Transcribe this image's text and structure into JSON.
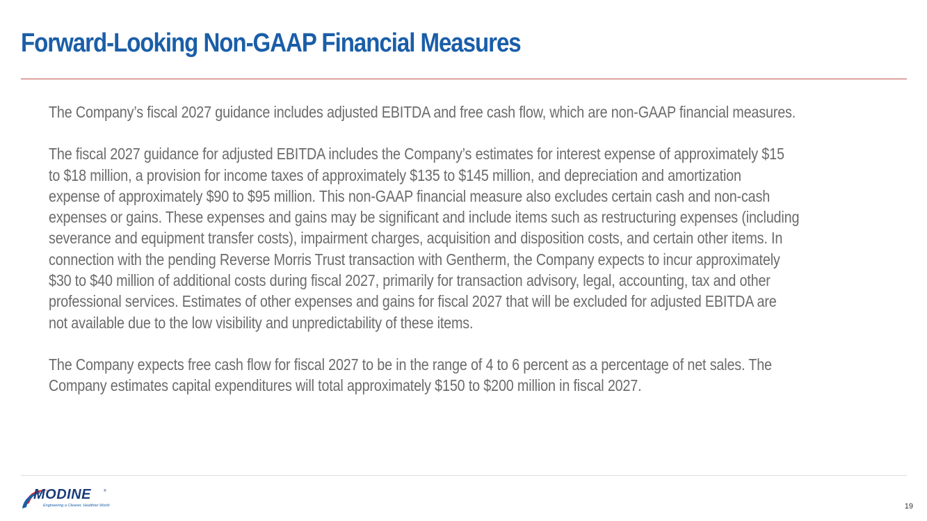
{
  "slide": {
    "title": "Forward-Looking Non-GAAP Financial Measures",
    "page_number": "19"
  },
  "body": {
    "paragraph1": "The Company’s fiscal 2027 guidance includes adjusted EBITDA and free cash flow, which are non-GAAP financial measures.",
    "paragraph2": [
      "The fiscal 2027 guidance for adjusted EBITDA includes the Company’s estimates for interest expense of approximately $15",
      "to $18 million, a provision for income taxes of approximately $135 to $145 million, and depreciation and amortization",
      "expense of approximately $90 to $95 million. This non-GAAP financial measure also excludes certain cash and non-cash",
      "expenses or gains. These expenses and gains may be significant and include items such as restructuring expenses (including",
      "severance and equipment transfer costs), impairment charges, acquisition and disposition costs, and certain other items.  In",
      "connection with the pending Reverse Morris Trust transaction with Gentherm, the Company expects to incur approximately",
      "$30 to $40 million of additional costs during fiscal 2027, primarily for transaction advisory, legal, accounting, tax and other",
      "professional services. Estimates of other expenses and gains for fiscal 2027 that will be excluded for adjusted EBITDA are",
      "not available due to the low visibility and unpredictability of these items."
    ],
    "paragraph3": [
      "The Company expects free cash flow for fiscal 2027 to be in the range of 4 to 6 percent as a percentage of net sales.  The",
      "Company estimates capital expenditures will total approximately $150 to $200 million in fiscal 2027."
    ]
  },
  "logo": {
    "wordmark": "MODINE",
    "tagline": "Engineering a Cleaner, Healthier World",
    "registered_mark": "®"
  },
  "colors": {
    "title": "#1a5ea8",
    "title_rule": "#c0504d",
    "body_text": "#6b6b6b",
    "logo_navy": "#1a3c7a",
    "logo_red": "#d2232a"
  }
}
